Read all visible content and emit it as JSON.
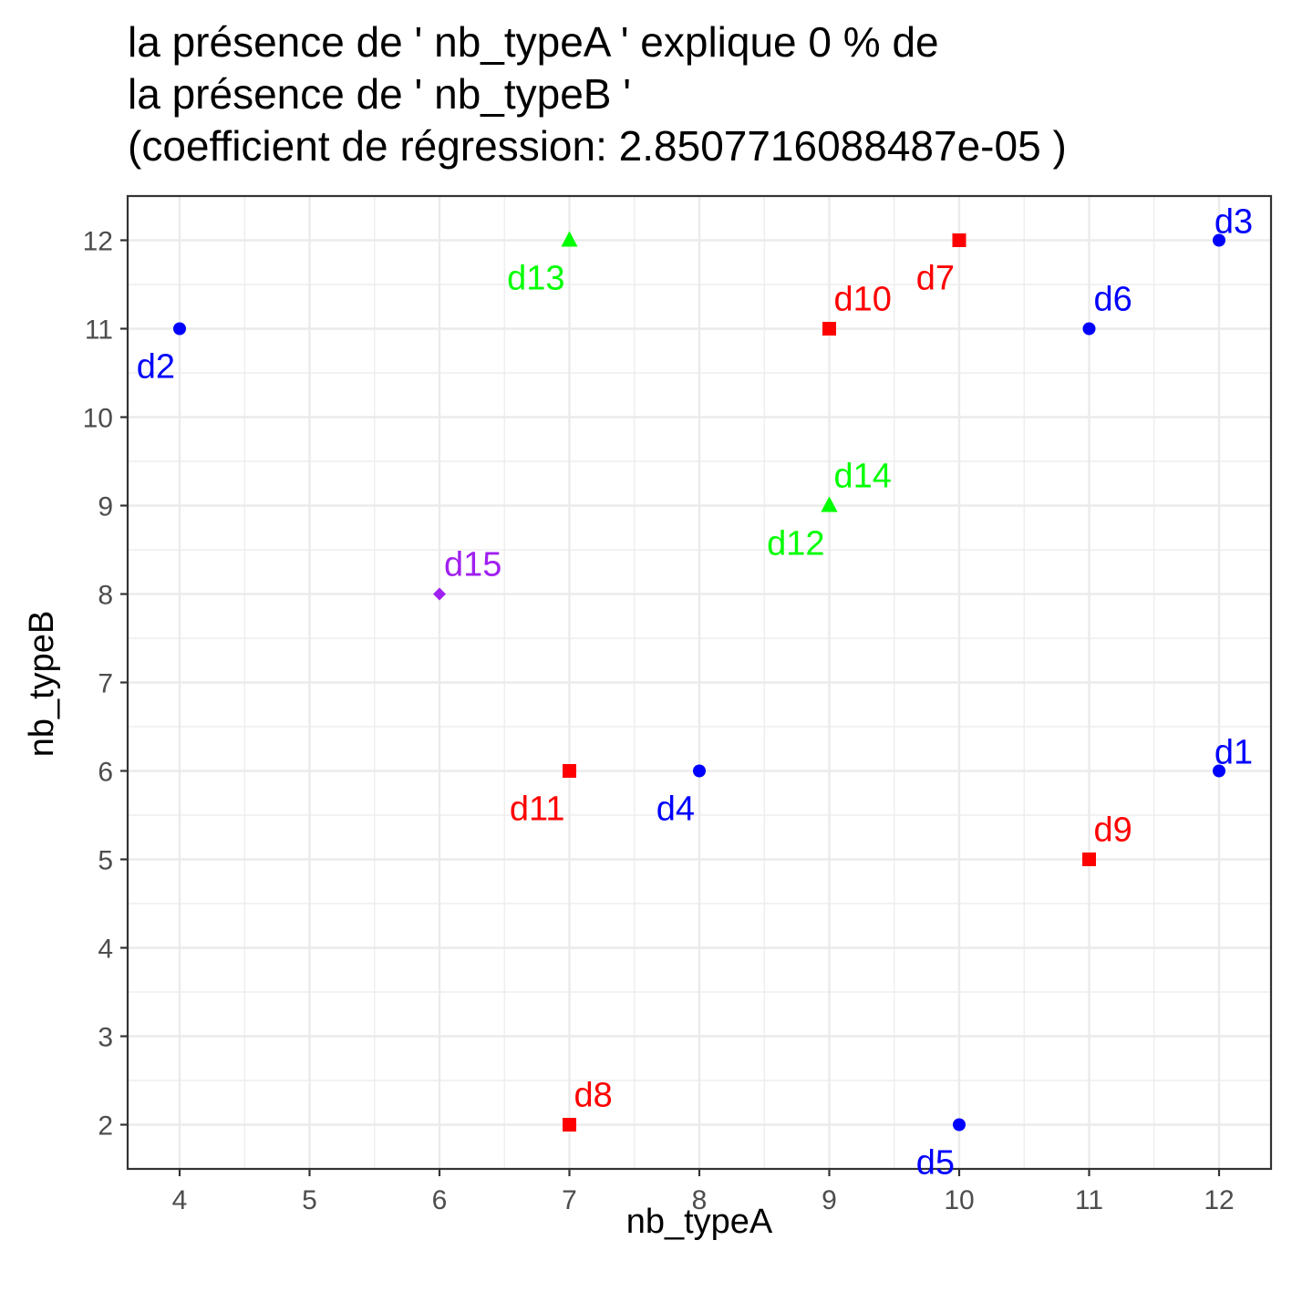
{
  "chart_data": {
    "type": "scatter",
    "title": [
      "la présence de ' nb_typeA ' explique 0 % de",
      "la présence de ' nb_typeB '",
      "(coefficient de régression: 2.8507716088487e-05 )"
    ],
    "xlabel": "nb_typeA",
    "ylabel": "nb_typeB",
    "xlim": [
      3.6,
      12.4
    ],
    "ylim": [
      1.5,
      12.5
    ],
    "xticks": [
      4,
      5,
      6,
      7,
      8,
      9,
      10,
      11,
      12
    ],
    "yticks": [
      2,
      3,
      4,
      5,
      6,
      7,
      8,
      9,
      10,
      11,
      12
    ],
    "grid": true,
    "legend": "none",
    "groups": {
      "A": {
        "color": "#0000ff",
        "shape": "circle"
      },
      "B": {
        "color": "#ff0000",
        "shape": "square"
      },
      "C": {
        "color": "#00ff00",
        "shape": "triangle"
      },
      "D": {
        "color": "#a020f0",
        "shape": "diamond"
      }
    },
    "points": [
      {
        "label": "d1",
        "x": 12,
        "y": 6,
        "group": "A",
        "label_pos": "above"
      },
      {
        "label": "d2",
        "x": 4,
        "y": 11,
        "group": "A",
        "label_pos": "below-left"
      },
      {
        "label": "d3",
        "x": 12,
        "y": 12,
        "group": "A",
        "label_pos": "above"
      },
      {
        "label": "d4",
        "x": 8,
        "y": 6,
        "group": "A",
        "label_pos": "below-left"
      },
      {
        "label": "d5",
        "x": 10,
        "y": 2,
        "group": "A",
        "label_pos": "below-left"
      },
      {
        "label": "d6",
        "x": 11,
        "y": 11,
        "group": "A",
        "label_pos": "above-right"
      },
      {
        "label": "d7",
        "x": 10,
        "y": 12,
        "group": "B",
        "label_pos": "below-left"
      },
      {
        "label": "d8",
        "x": 7,
        "y": 2,
        "group": "B",
        "label_pos": "above-right"
      },
      {
        "label": "d9",
        "x": 11,
        "y": 5,
        "group": "B",
        "label_pos": "above-right"
      },
      {
        "label": "d10",
        "x": 9,
        "y": 11,
        "group": "B",
        "label_pos": "above-right"
      },
      {
        "label": "d11",
        "x": 7,
        "y": 6,
        "group": "B",
        "label_pos": "below-left"
      },
      {
        "label": "d12",
        "x": 9,
        "y": 9,
        "group": "C",
        "label_pos": "below-left"
      },
      {
        "label": "d13",
        "x": 7,
        "y": 12,
        "group": "C",
        "label_pos": "below-left"
      },
      {
        "label": "d14",
        "x": 9,
        "y": 9,
        "group": "C",
        "label_pos": "above-right"
      },
      {
        "label": "d15",
        "x": 6,
        "y": 8,
        "group": "D",
        "label_pos": "above-right"
      }
    ]
  }
}
